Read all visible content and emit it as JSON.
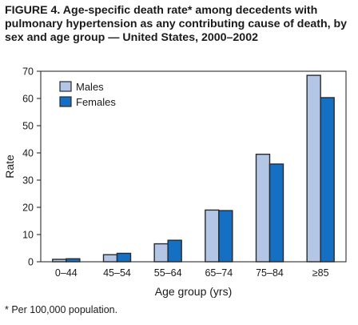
{
  "figure": {
    "title": "FIGURE 4. Age-specific death rate* among decedents with pulmonary hypertension as any contributing cause of death, by sex and age group — United States, 2000–2002",
    "footnote": "* Per 100,000 population."
  },
  "chart_data": {
    "type": "bar",
    "categories": [
      "0–44",
      "45–54",
      "55–64",
      "65–74",
      "75–84",
      "≥85"
    ],
    "series": [
      {
        "name": "Males",
        "color": "#b3c6e6",
        "values": [
          0.9,
          2.6,
          6.6,
          19.0,
          39.5,
          68.5
        ]
      },
      {
        "name": "Females",
        "color": "#1570c4",
        "values": [
          1.1,
          3.1,
          7.9,
          18.8,
          35.9,
          60.3
        ]
      }
    ],
    "xlabel": "Age group (yrs)",
    "ylabel": "Rate",
    "ylim": [
      0,
      70
    ],
    "yticks": [
      0,
      10,
      20,
      30,
      40,
      50,
      60,
      70
    ],
    "grid": false,
    "legend_position": "top-left"
  }
}
